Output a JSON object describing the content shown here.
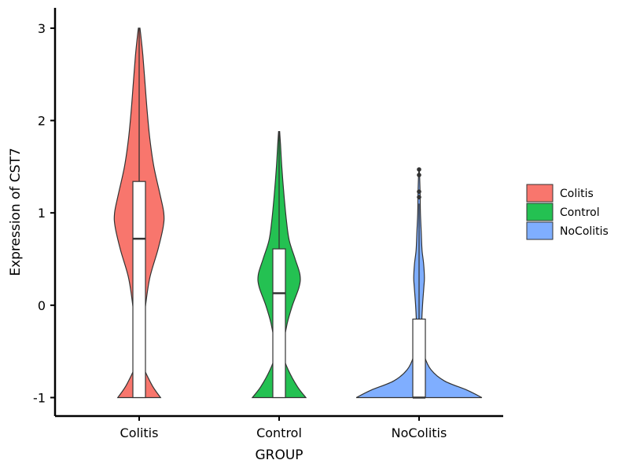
{
  "chart_data": {
    "type": "violin",
    "xlabel": "GROUP",
    "ylabel": "Expression of CST7",
    "ylim": [
      -1.2,
      3.22
    ],
    "yticks": [
      -1,
      0,
      1,
      2,
      3
    ],
    "yticklabels": [
      "-1",
      "0",
      "1",
      "2",
      "3"
    ],
    "categories": [
      "Colitis",
      "Control",
      "NoColitis"
    ],
    "legend": {
      "position": "right",
      "entries": [
        "Colitis",
        "Control",
        "NoColitis"
      ]
    },
    "grid": false,
    "series": [
      {
        "name": "Colitis",
        "color": "#F8766D",
        "box": {
          "min": -1,
          "q1": -1,
          "median": 0.72,
          "q3": 1.34,
          "max": 3.0
        },
        "outliers": [],
        "density": [
          [
            -1,
            0.8
          ],
          [
            -0.85,
            0.45
          ],
          [
            -0.6,
            0.1
          ],
          [
            -0.3,
            0.13
          ],
          [
            0,
            0.24
          ],
          [
            0.3,
            0.4
          ],
          [
            0.6,
            0.7
          ],
          [
            0.85,
            0.9
          ],
          [
            1.0,
            0.92
          ],
          [
            1.2,
            0.78
          ],
          [
            1.5,
            0.55
          ],
          [
            1.8,
            0.4
          ],
          [
            2.1,
            0.3
          ],
          [
            2.4,
            0.22
          ],
          [
            2.7,
            0.14
          ],
          [
            2.9,
            0.07
          ],
          [
            3.0,
            0.03
          ]
        ]
      },
      {
        "name": "Control",
        "color": "#24C152",
        "box": {
          "min": -1,
          "q1": -1,
          "median": 0.13,
          "q3": 0.61,
          "max": 1.88
        },
        "outliers": [],
        "density": [
          [
            -1,
            1.0
          ],
          [
            -0.88,
            0.68
          ],
          [
            -0.7,
            0.34
          ],
          [
            -0.55,
            0.16
          ],
          [
            -0.4,
            0.18
          ],
          [
            -0.2,
            0.3
          ],
          [
            0,
            0.5
          ],
          [
            0.2,
            0.75
          ],
          [
            0.33,
            0.78
          ],
          [
            0.5,
            0.6
          ],
          [
            0.7,
            0.38
          ],
          [
            0.9,
            0.28
          ],
          [
            1.2,
            0.18
          ],
          [
            1.5,
            0.1
          ],
          [
            1.75,
            0.05
          ],
          [
            1.88,
            0.02
          ]
        ]
      },
      {
        "name": "NoColitis",
        "color": "#7FAEFF",
        "box": {
          "min": -1,
          "q1": -1,
          "median": -1,
          "q3": -0.15,
          "max": 1.1
        },
        "outliers": [
          1.17,
          1.23,
          1.41,
          1.47
        ],
        "density": [
          [
            -1,
            2.35
          ],
          [
            -0.92,
            1.8
          ],
          [
            -0.82,
            0.95
          ],
          [
            -0.7,
            0.45
          ],
          [
            -0.55,
            0.2
          ],
          [
            -0.4,
            0.12
          ],
          [
            -0.2,
            0.1
          ],
          [
            0,
            0.13
          ],
          [
            0.2,
            0.18
          ],
          [
            0.3,
            0.2
          ],
          [
            0.45,
            0.17
          ],
          [
            0.6,
            0.11
          ],
          [
            0.8,
            0.08
          ],
          [
            1.0,
            0.05
          ],
          [
            1.2,
            0.04
          ],
          [
            1.4,
            0.02
          ],
          [
            1.47,
            0.005
          ]
        ]
      }
    ]
  }
}
